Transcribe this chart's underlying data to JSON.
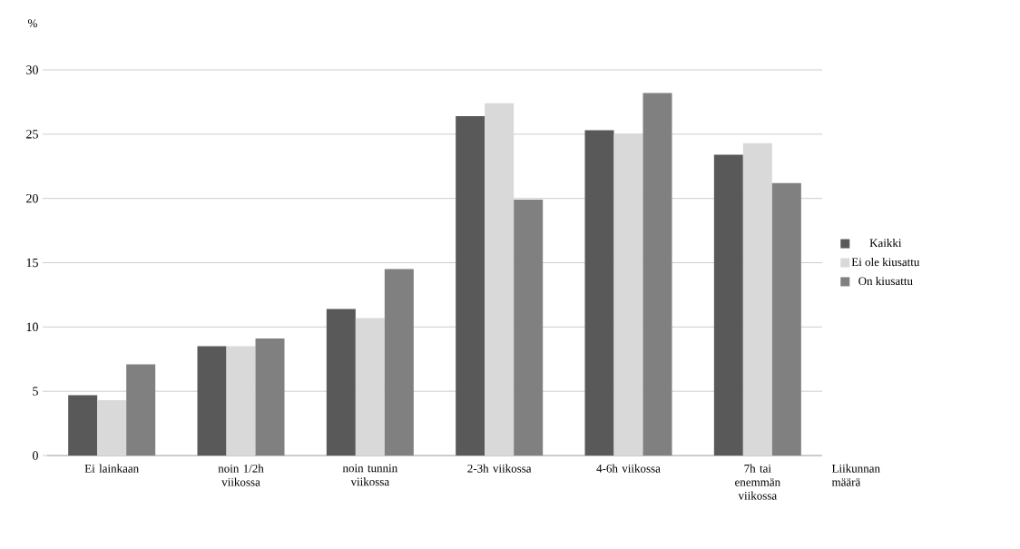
{
  "chart_data": {
    "type": "bar",
    "ylabel": "%",
    "xlabel": "Liikunnan määrä",
    "categories": [
      "Ei lainkaan",
      "noin 1/2h viikossa",
      "noin tunnin viikossa",
      "2-3h viikossa",
      "4-6h viikossa",
      "7h tai enemmän viikossa"
    ],
    "series": [
      {
        "name": "Kaikki",
        "color": "#595959",
        "values": [
          4.7,
          8.5,
          11.4,
          26.4,
          25.3,
          23.4
        ]
      },
      {
        "name": "Ei ole kiusattu",
        "color": "#d9d9d9",
        "values": [
          4.3,
          8.5,
          10.7,
          27.4,
          25.0,
          24.3
        ]
      },
      {
        "name": "On kiusattu",
        "color": "#808080",
        "values": [
          7.1,
          9.1,
          14.5,
          19.9,
          28.2,
          21.2
        ]
      }
    ],
    "ylim": [
      0,
      30
    ],
    "yticks": [
      0,
      5,
      10,
      15,
      20,
      25,
      30
    ],
    "grid": "y",
    "legend": "right"
  }
}
